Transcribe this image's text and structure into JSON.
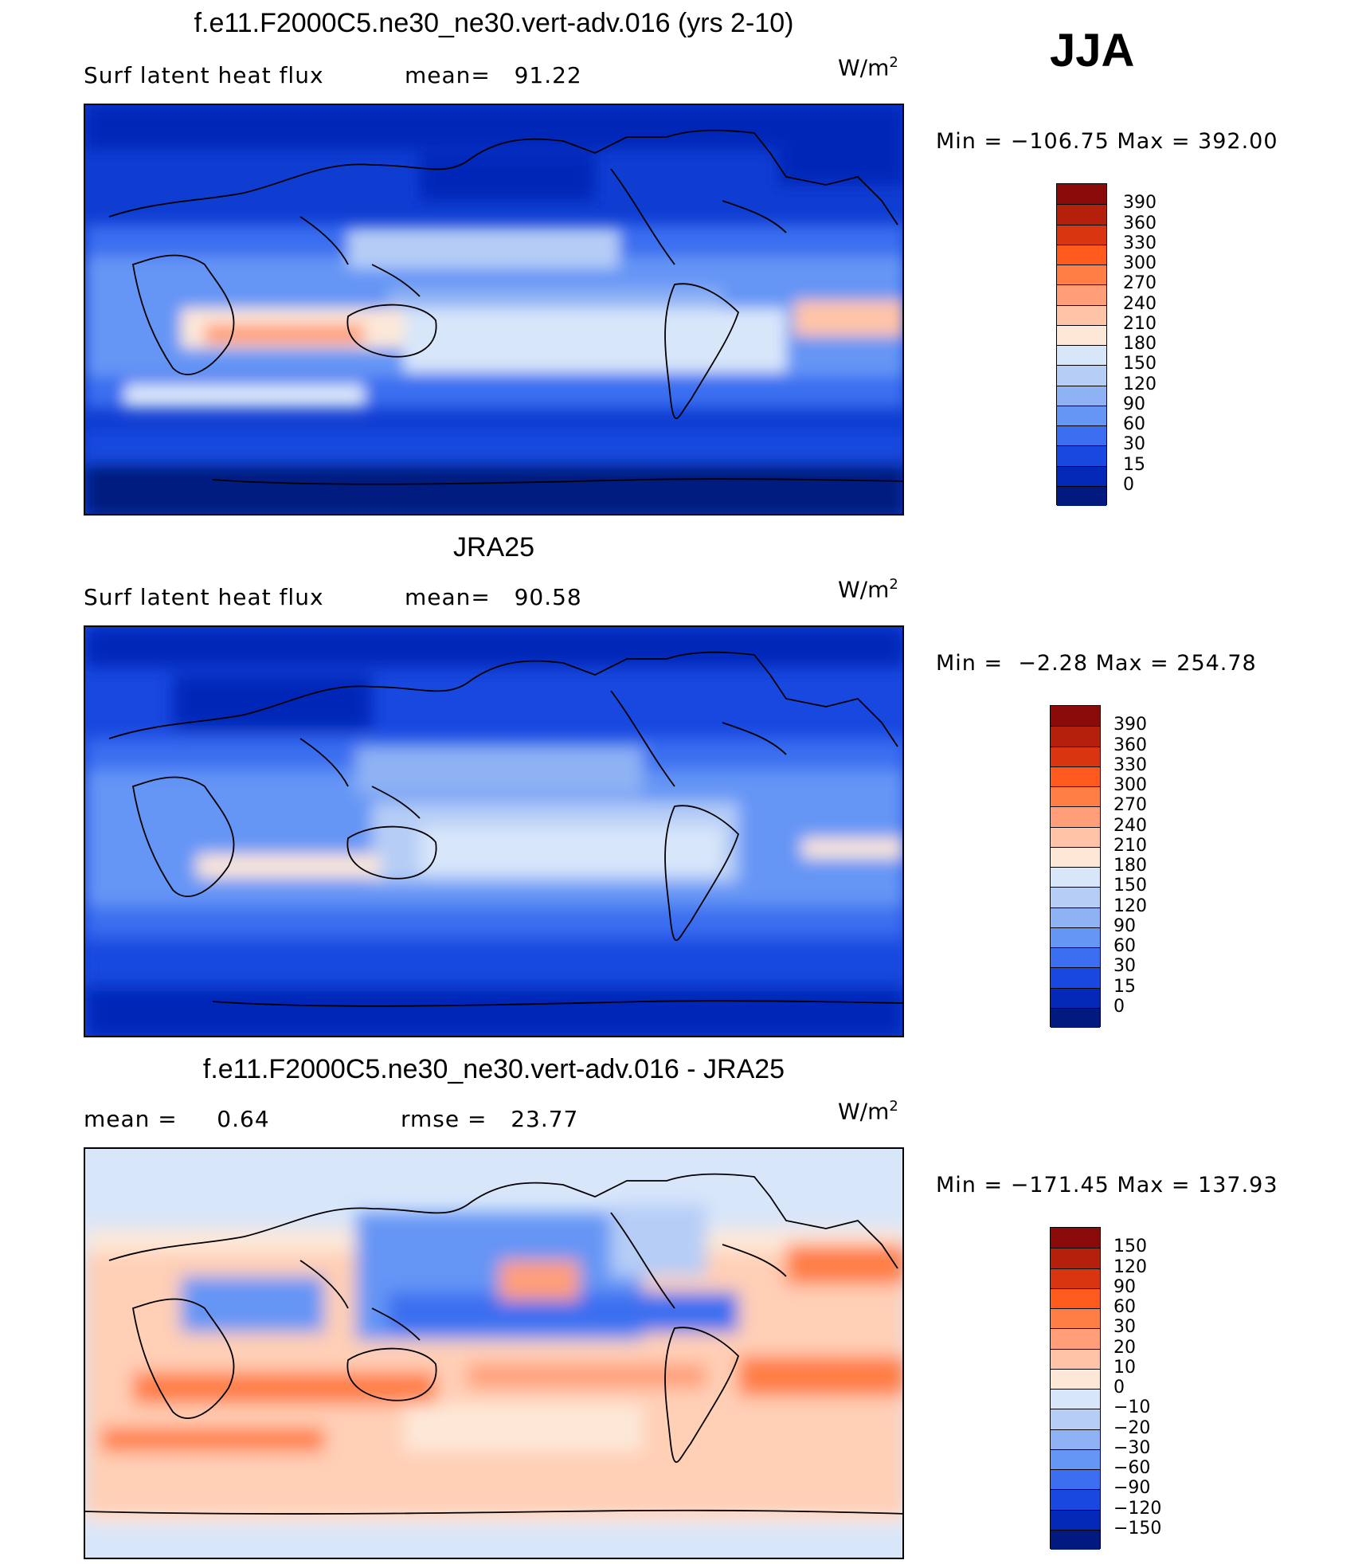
{
  "season": "JJA",
  "panels": [
    {
      "title": "f.e11.F2000C5.ne30_ne30.vert-adv.016 (yrs 2-10)",
      "left_label": "Surf latent heat flux",
      "stat_label": "mean=",
      "stat_value": "91.22",
      "units_base": "W/m",
      "units_exp": "2",
      "min_label": "Min  =",
      "min_value": "−106.75",
      "max_label": "Max  =",
      "max_value": "392.00",
      "levels": [
        "390",
        "360",
        "330",
        "300",
        "270",
        "240",
        "210",
        "180",
        "150",
        "120",
        "90",
        "60",
        "30",
        "15",
        "0"
      ],
      "colors": [
        "#8b0a0a",
        "#b5200c",
        "#d93510",
        "#ff5a1e",
        "#ff7e45",
        "#ff9e78",
        "#ffc4a8",
        "#fde8d8",
        "#d8e6fa",
        "#b6cdf6",
        "#8fb2f4",
        "#6595f5",
        "#3b6ef0",
        "#1848df",
        "#0428b8",
        "#021a80"
      ]
    },
    {
      "title": "JRA25",
      "left_label": "Surf latent heat flux",
      "stat_label": "mean=",
      "stat_value": "90.58",
      "units_base": "W/m",
      "units_exp": "2",
      "min_label": "Min  =",
      "min_value": "−2.28",
      "max_label": "Max  =",
      "max_value": "254.78",
      "levels": [
        "390",
        "360",
        "330",
        "300",
        "270",
        "240",
        "210",
        "180",
        "150",
        "120",
        "90",
        "60",
        "30",
        "15",
        "0"
      ],
      "colors": [
        "#8b0a0a",
        "#b5200c",
        "#d93510",
        "#ff5a1e",
        "#ff7e45",
        "#ff9e78",
        "#ffc4a8",
        "#fde8d8",
        "#d8e6fa",
        "#b6cdf6",
        "#8fb2f4",
        "#6595f5",
        "#3b6ef0",
        "#1848df",
        "#0428b8",
        "#021a80"
      ]
    },
    {
      "title": "f.e11.F2000C5.ne30_ne30.vert-adv.016 - JRA25",
      "left_label": "mean =",
      "left_value": "0.64",
      "stat_label": "rmse =",
      "stat_value": "23.77",
      "units_base": "W/m",
      "units_exp": "2",
      "min_label": "Min  =",
      "min_value": "−171.45",
      "max_label": "Max  =",
      "max_value": "137.93",
      "levels": [
        "150",
        "120",
        "90",
        "60",
        "30",
        "20",
        "10",
        "0",
        "−10",
        "−20",
        "−30",
        "−60",
        "−90",
        "−120",
        "−150"
      ],
      "colors": [
        "#8b0a0a",
        "#b5200c",
        "#d93510",
        "#ff5a1e",
        "#ff7e45",
        "#ff9e78",
        "#ffc4a8",
        "#fde8d8",
        "#d8e6fa",
        "#b6cdf6",
        "#8fb2f4",
        "#6595f5",
        "#3b6ef0",
        "#1848df",
        "#0428b8",
        "#021a80"
      ]
    }
  ]
}
